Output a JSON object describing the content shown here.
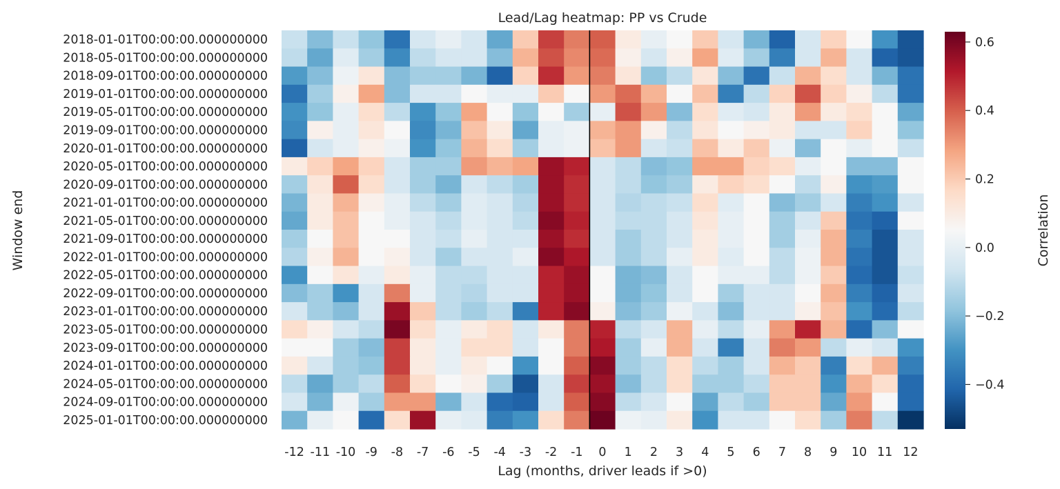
{
  "chart_data": {
    "type": "heatmap",
    "title": "Lead/Lag heatmap: PP vs Crude",
    "xlabel": "Lag (months, driver leads if >0)",
    "ylabel": "Window end",
    "colorbar_label": "Correlation",
    "colormap": "RdBu_r",
    "vmin": -0.53,
    "vmax": 0.63,
    "colorbar_ticks": [
      0.6,
      0.4,
      0.2,
      0.0,
      -0.2,
      -0.4
    ],
    "colorbar_tick_labels": [
      "0.6",
      "0.4",
      "0.2",
      "0.0",
      "−0.2",
      "−0.4"
    ],
    "x_categories": [
      "-12",
      "-11",
      "-10",
      "-9",
      "-8",
      "-7",
      "-6",
      "-5",
      "-4",
      "-3",
      "-2",
      "-1",
      "0",
      "1",
      "2",
      "3",
      "4",
      "5",
      "6",
      "7",
      "8",
      "9",
      "10",
      "11",
      "12"
    ],
    "zero_lag_line": "0",
    "y_tick_labels": [
      "2018-01-01T00:00:00.000000000",
      "2018-05-01T00:00:00.000000000",
      "2018-09-01T00:00:00.000000000",
      "2019-01-01T00:00:00.000000000",
      "2019-05-01T00:00:00.000000000",
      "2019-09-01T00:00:00.000000000",
      "2020-01-01T00:00:00.000000000",
      "2020-05-01T00:00:00.000000000",
      "2020-09-01T00:00:00.000000000",
      "2021-01-01T00:00:00.000000000",
      "2021-05-01T00:00:00.000000000",
      "2021-09-01T00:00:00.000000000",
      "2022-01-01T00:00:00.000000000",
      "2022-05-01T00:00:00.000000000",
      "2022-09-01T00:00:00.000000000",
      "2023-01-01T00:00:00.000000000",
      "2023-05-01T00:00:00.000000000",
      "2023-09-01T00:00:00.000000000",
      "2024-01-01T00:00:00.000000000",
      "2024-05-01T00:00:00.000000000",
      "2024-09-01T00:00:00.000000000",
      "2025-01-01T00:00:00.000000000"
    ],
    "row_period_months": 4,
    "values": [
      [
        -0.08,
        -0.2,
        -0.08,
        -0.18,
        -0.38,
        -0.05,
        0.0,
        -0.05,
        -0.25,
        0.2,
        0.45,
        0.35,
        0.4,
        0.1,
        0.0,
        0.05,
        0.2,
        -0.05,
        -0.22,
        -0.42,
        -0.05,
        0.18,
        0.05,
        -0.3,
        -0.45
      ],
      [
        -0.1,
        -0.25,
        -0.02,
        -0.15,
        -0.32,
        -0.1,
        -0.05,
        -0.05,
        -0.2,
        0.25,
        0.42,
        0.33,
        0.38,
        0.08,
        -0.05,
        0.08,
        0.28,
        -0.02,
        -0.15,
        -0.35,
        -0.05,
        0.25,
        -0.05,
        -0.42,
        -0.45
      ],
      [
        -0.28,
        -0.2,
        0.02,
        0.12,
        -0.2,
        -0.15,
        -0.15,
        -0.22,
        -0.42,
        0.18,
        0.48,
        0.3,
        0.35,
        0.12,
        -0.18,
        -0.1,
        0.12,
        -0.2,
        -0.38,
        -0.08,
        0.25,
        0.15,
        -0.05,
        -0.22,
        -0.38
      ],
      [
        -0.38,
        -0.15,
        0.08,
        0.28,
        -0.2,
        -0.05,
        -0.05,
        0.05,
        0.0,
        0.0,
        0.2,
        0.05,
        0.3,
        0.38,
        0.25,
        0.05,
        0.22,
        -0.35,
        -0.1,
        0.18,
        0.42,
        0.18,
        0.08,
        -0.1,
        -0.38
      ],
      [
        -0.3,
        -0.18,
        0.0,
        0.15,
        -0.1,
        -0.3,
        -0.18,
        0.28,
        0.05,
        -0.18,
        0.05,
        -0.15,
        0.0,
        0.42,
        0.3,
        -0.2,
        0.15,
        -0.02,
        -0.05,
        0.1,
        0.3,
        0.1,
        0.15,
        0.05,
        -0.25
      ],
      [
        -0.32,
        0.08,
        0.0,
        0.12,
        0.05,
        -0.32,
        -0.22,
        0.22,
        0.1,
        -0.25,
        0.0,
        0.02,
        0.25,
        0.3,
        0.08,
        -0.1,
        0.12,
        0.05,
        0.08,
        0.1,
        -0.05,
        -0.05,
        0.18,
        0.05,
        -0.18
      ],
      [
        -0.42,
        -0.05,
        0.0,
        0.08,
        0.02,
        -0.3,
        -0.18,
        0.25,
        0.15,
        -0.15,
        0.0,
        0.02,
        0.22,
        0.3,
        -0.05,
        -0.08,
        0.22,
        0.1,
        0.2,
        0.02,
        -0.2,
        0.05,
        0.0,
        0.05,
        -0.08
      ],
      [
        0.1,
        0.18,
        0.28,
        0.18,
        -0.05,
        -0.15,
        -0.15,
        0.3,
        0.25,
        0.28,
        0.55,
        0.5,
        -0.05,
        -0.1,
        -0.2,
        -0.18,
        0.28,
        0.28,
        0.18,
        0.15,
        0.0,
        0.05,
        -0.2,
        -0.2,
        0.05
      ],
      [
        -0.15,
        0.12,
        0.4,
        0.15,
        -0.05,
        -0.15,
        -0.22,
        -0.05,
        -0.1,
        -0.15,
        0.55,
        0.48,
        -0.05,
        -0.1,
        -0.18,
        -0.15,
        0.1,
        0.18,
        0.15,
        0.05,
        -0.1,
        0.08,
        -0.3,
        -0.28,
        0.05
      ],
      [
        -0.22,
        0.1,
        0.25,
        0.08,
        0.0,
        -0.1,
        -0.15,
        -0.02,
        -0.05,
        -0.12,
        0.55,
        0.48,
        -0.05,
        -0.12,
        -0.1,
        -0.08,
        0.15,
        -0.02,
        0.05,
        -0.2,
        -0.15,
        -0.05,
        -0.35,
        -0.3,
        -0.05
      ],
      [
        -0.25,
        0.1,
        0.22,
        0.05,
        0.0,
        -0.05,
        -0.1,
        -0.02,
        -0.05,
        -0.1,
        0.58,
        0.5,
        -0.05,
        -0.1,
        -0.1,
        -0.05,
        0.12,
        0.0,
        0.05,
        -0.15,
        -0.05,
        0.2,
        -0.38,
        -0.42,
        0.05
      ],
      [
        -0.15,
        0.05,
        0.22,
        0.05,
        0.05,
        -0.05,
        -0.08,
        0.0,
        -0.05,
        -0.05,
        0.55,
        0.48,
        -0.05,
        -0.15,
        -0.1,
        -0.05,
        0.1,
        0.0,
        0.05,
        -0.15,
        0.0,
        0.25,
        -0.35,
        -0.45,
        -0.05
      ],
      [
        -0.12,
        0.08,
        0.25,
        0.05,
        0.08,
        -0.05,
        -0.15,
        -0.05,
        -0.05,
        0.0,
        0.58,
        0.52,
        -0.05,
        -0.15,
        -0.1,
        0.0,
        0.1,
        -0.02,
        0.05,
        -0.1,
        0.02,
        0.25,
        -0.38,
        -0.45,
        -0.05
      ],
      [
        -0.3,
        0.05,
        0.12,
        0.0,
        0.1,
        0.0,
        -0.1,
        -0.1,
        -0.05,
        -0.05,
        0.5,
        0.55,
        0.05,
        -0.22,
        -0.2,
        -0.05,
        0.05,
        0.0,
        0.0,
        -0.1,
        0.02,
        0.2,
        -0.4,
        -0.45,
        -0.08
      ],
      [
        -0.2,
        -0.15,
        -0.3,
        -0.05,
        0.35,
        0.0,
        -0.1,
        -0.12,
        -0.05,
        -0.05,
        0.5,
        0.55,
        0.05,
        -0.22,
        -0.18,
        -0.05,
        0.05,
        -0.15,
        -0.05,
        -0.05,
        0.05,
        0.25,
        -0.35,
        -0.42,
        -0.05
      ],
      [
        -0.05,
        -0.15,
        -0.2,
        -0.05,
        0.55,
        0.2,
        -0.1,
        -0.15,
        -0.1,
        -0.35,
        0.5,
        0.58,
        0.08,
        -0.2,
        -0.15,
        0.02,
        -0.05,
        -0.2,
        -0.05,
        -0.05,
        0.08,
        0.22,
        -0.3,
        -0.4,
        -0.1
      ],
      [
        0.15,
        0.08,
        -0.05,
        -0.1,
        0.6,
        0.15,
        0.0,
        0.1,
        0.15,
        -0.05,
        0.1,
        0.35,
        0.5,
        -0.1,
        -0.05,
        0.25,
        0.0,
        -0.1,
        0.0,
        0.3,
        0.5,
        0.25,
        -0.4,
        -0.2,
        0.05
      ],
      [
        0.05,
        0.05,
        -0.15,
        -0.2,
        0.45,
        0.1,
        0.0,
        0.15,
        0.15,
        -0.05,
        0.05,
        0.35,
        0.52,
        -0.15,
        0.0,
        0.25,
        -0.05,
        -0.35,
        -0.05,
        0.35,
        0.3,
        -0.1,
        0.0,
        -0.05,
        -0.3
      ],
      [
        0.1,
        -0.05,
        -0.15,
        -0.18,
        0.45,
        0.1,
        0.0,
        0.1,
        0.05,
        -0.3,
        0.05,
        0.4,
        0.58,
        -0.15,
        -0.1,
        0.15,
        -0.1,
        -0.15,
        -0.05,
        0.25,
        0.2,
        -0.35,
        0.15,
        0.25,
        -0.35
      ],
      [
        -0.1,
        -0.25,
        -0.15,
        -0.1,
        0.4,
        0.15,
        0.05,
        0.08,
        -0.15,
        -0.45,
        -0.05,
        0.45,
        0.55,
        -0.2,
        -0.1,
        0.15,
        -0.15,
        -0.15,
        -0.1,
        0.2,
        0.2,
        -0.3,
        0.25,
        0.15,
        -0.4
      ],
      [
        -0.05,
        -0.22,
        0.02,
        -0.15,
        0.3,
        0.3,
        -0.22,
        -0.05,
        -0.4,
        -0.42,
        -0.05,
        0.4,
        0.58,
        -0.1,
        -0.05,
        0.05,
        -0.25,
        -0.1,
        -0.15,
        0.2,
        0.2,
        -0.25,
        0.3,
        0.05,
        -0.4
      ],
      [
        -0.22,
        0.0,
        0.05,
        -0.4,
        0.15,
        0.55,
        0.0,
        -0.02,
        -0.35,
        -0.3,
        0.15,
        0.35,
        0.62,
        0.02,
        0.0,
        0.1,
        -0.3,
        -0.05,
        -0.05,
        0.05,
        0.15,
        -0.15,
        0.35,
        -0.1,
        -0.52
      ]
    ]
  }
}
